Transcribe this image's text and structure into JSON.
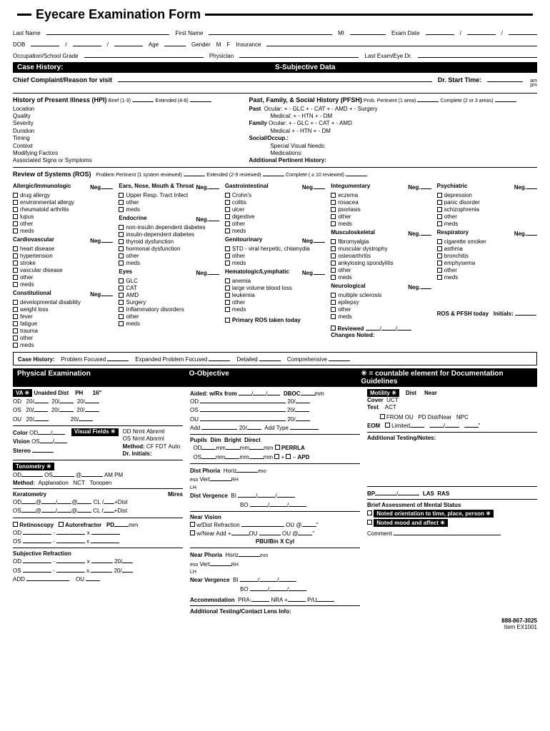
{
  "title": "Eyecare Examination Form",
  "patient": {
    "lastName": "Last Name",
    "firstName": "First Name",
    "mi": "MI",
    "examDate": "Exam Date",
    "dob": "DOB",
    "age": "Age",
    "gender": "Gender",
    "m": "M",
    "f": "F",
    "insurance": "Insurance",
    "occupation": "Occupation/School Grade",
    "physician": "Physician",
    "lastExam": "Last Exam/Eye Dr."
  },
  "bar1": {
    "left": "Case History:",
    "mid": "S-Subjective Data"
  },
  "chief": {
    "label": "Chief Complaint/Reason for visit",
    "start": "Dr. Start Time:",
    "am": "am",
    "pm": "pm"
  },
  "hpi": {
    "title": "History of Present Illness (HPI)",
    "brief": "Brief (1-3)",
    "ext": "Extended (4-8)",
    "items": [
      "Location",
      "Quality",
      "Severity",
      "Duration",
      "Timing",
      "Context",
      "Modifying Factors",
      "Associated Signs or Symptoms"
    ]
  },
  "pfsh": {
    "title": "Past, Family, & Social History (PFSH)",
    "prob": "Prob. Pertinent (1 area)",
    "comp": "Complete (2 or 3 areas)",
    "past": "Past",
    "pastLine": "Ocular:   +   -   GLC   +   -   CAT   +   -   AMD   +   -   Surgery",
    "pastMed": "Medical:   +   -   HTN   +   -   DM",
    "family": "Family",
    "famLine": "Ocular:   +   -   GLC   +   -   CAT   +   -   AMD",
    "famMed": "Medical   +   -   HTN   +   -   DM",
    "social": "Social/Occup.:",
    "svn": "Special Visual Needs:",
    "meds": "Medications:",
    "aph": "Additional Pertinent History:"
  },
  "ros": {
    "title": "Review of Systems (ROS)",
    "pp": "Problem Pertinent (1 system reviewed)",
    "ext": "Extended (2-9 reviewed)",
    "comp": "Complete ( ≥ 10 reviewed)",
    "neg": "Neg.",
    "c1": {
      "h1": "Allergic/Immunologic",
      "i1": [
        "drug allergy",
        "environmental allergy",
        "rheumatoid arthritis",
        "lupus",
        "other",
        "meds"
      ],
      "h2": "Cardiovascular",
      "i2": [
        "heart disease",
        "hypertension",
        "stroke",
        "vascular disease",
        "other",
        "meds"
      ],
      "h3": "Constitutional",
      "i3": [
        "developmental disability",
        "weight loss",
        "fever",
        "fatigue",
        "trauma",
        "other",
        "meds"
      ]
    },
    "c2": {
      "h1": "Ears, Nose, Mouth & Throat",
      "i1": [
        "Upper Resp. Tract Infect",
        "other",
        "meds"
      ],
      "h2": "Endocrine",
      "i2": [
        "non-insulin dependent diabetes",
        "insulin-dependent diabetes",
        "thyroid dysfunction",
        "hormonal dysfunction",
        "other",
        "meds"
      ],
      "h3": "Eyes",
      "i3": [
        "GLC",
        "CAT",
        "AMD",
        "Surgery",
        "Inflammatory disorders",
        "other",
        "meds"
      ]
    },
    "c3": {
      "h1": "Gastrointestinal",
      "i1": [
        "Crohn's",
        "colitis",
        "ulcer",
        "digestive",
        "other",
        "meds"
      ],
      "h2": "Genitourinary",
      "i2": [
        "STD - viral herpetic, chlamydia",
        "other",
        "meds"
      ],
      "h3": "Hematologic/Lymphatic",
      "i3": [
        "anemia",
        "large volume blood loss",
        "leukemia",
        "other",
        "meds"
      ],
      "primary": "Primary ROS taken today"
    },
    "c4": {
      "h1": "Integumentary",
      "i1": [
        "eczema",
        "rosacea",
        "psoriasis",
        "other",
        "meds"
      ],
      "h2": "Musculoskeletal",
      "i2": [
        "fibromyalgia",
        "muscular dystrophy",
        "osteoarthritis",
        "ankylosing spondylitis",
        "other",
        "meds"
      ],
      "h3": "Neurological",
      "i3": [
        "multiple sclerosis",
        "epilepsy",
        "other",
        "meds"
      ],
      "reviewed": "Reviewed",
      "rosPfsh": "ROS & PFSH today",
      "changes": "Changes Noted:"
    },
    "c5": {
      "h1": "Psychiatric",
      "i1": [
        "depression",
        "panic disorder",
        "schizophrenia",
        "other",
        "meds"
      ],
      "h2": "Respiratory",
      "i2": [
        "cigarette smoker",
        "asthma",
        "bronchitis",
        "emphysema",
        "other",
        "meds"
      ],
      "initials": "Initials:"
    }
  },
  "caseHistBox": {
    "label": "Case History:",
    "pf": "Problem Focused",
    "epf": "Expanded Problem Focused",
    "det": "Detailed",
    "comp": "Comprehensive"
  },
  "bar2": {
    "left": "Physical Examination",
    "mid": "O-Objective",
    "right": "✳ = countable element for Documentation Guidelines"
  },
  "pe": {
    "va": {
      "label": "VA ✳",
      "unaided": "Unaided Dist",
      "ph": "PH",
      "dist16": "16\"",
      "od": "OD",
      "os": "OS",
      "ou": "OU",
      "v20": "20/"
    },
    "color": {
      "c": "Color",
      "vis": "Vision",
      "stereo": "Stereo",
      "vf": "Visual Fields ✳",
      "nrml": "Nrml",
      "abnrml": "Abnrml",
      "method": "Method:",
      "cf": "CF",
      "fdt": "FDT",
      "auto": "Auto",
      "dri": "Dr. Initials:"
    },
    "tono": {
      "label": "Tonometry ✳",
      "method": "Method:",
      "app": "Applanation",
      "nct": "NCT",
      "ton": "Tonopen",
      "ampm": "AM  PM",
      "at": "@"
    },
    "kera": {
      "label": "Keratometry",
      "mires": "Mires",
      "cl": "CL /",
      "dist": "+Dist"
    },
    "retino": {
      "r": "Retinoscopy",
      "a": "Autorefractor",
      "pd": "PD",
      "mm": "mm",
      "x": "x"
    },
    "subj": {
      "label": "Subjective Refraction",
      "add": "ADD"
    },
    "aided": {
      "label": "Aided: w/Rx from",
      "dboc": "DBOC",
      "mm": "mm",
      "addType": "Add Type"
    },
    "pupils": {
      "label": "Pupils",
      "dim": "Dim",
      "bright": "Bright",
      "direct": "Direct",
      "perrla": "PERRLA",
      "apd": "APD",
      "plus": "+",
      "minus": "−"
    },
    "phoria": {
      "dist": "Dist Phoria",
      "horiz": "Horiz",
      "vert": "Vert",
      "exo": "exo",
      "eso": "eso",
      "rh": "RH",
      "lh": "LH",
      "verg": "Dist Vergence",
      "bi": "BI",
      "bo": "BO"
    },
    "near": {
      "label": "Near Vision",
      "wdist": "w/Dist Refraction",
      "wnear": "w/Near Add",
      "ou": "OU",
      "ouAt": "OU @",
      "pbu": "PBU/Bin X Cyl"
    },
    "nearP": {
      "label": "Near Phoria",
      "verg": "Near Vergence"
    },
    "accom": {
      "label": "Accommodation",
      "pra": "PRA-",
      "nra": "NRA +",
      "pu": "P/U"
    },
    "addTest": "Additional Testing/Contact Lens Info:",
    "motility": {
      "label": "Motility ✳",
      "dist": "Dist",
      "near": "Near",
      "cover": "Cover",
      "uct": "UCT",
      "test": "Test",
      "act": "ACT",
      "fromOu": "FROM OU",
      "pdDist": "PD Dist/Near",
      "npc": "NPC",
      "eom": "EOM",
      "limited": "Limited"
    },
    "addNotes": "Additional Testing/Notes:",
    "bp": "BP",
    "las": "LAS",
    "ras": "RAS",
    "mental": {
      "label": "Brief Assessment of Mental Status",
      "l1": "Noted orientation to time, place, person ✳",
      "l2": "Noted mood and affect ✳",
      "comment": "Comment"
    }
  },
  "footer": {
    "phone": "888-867-3025",
    "item": "Item EX1001"
  }
}
